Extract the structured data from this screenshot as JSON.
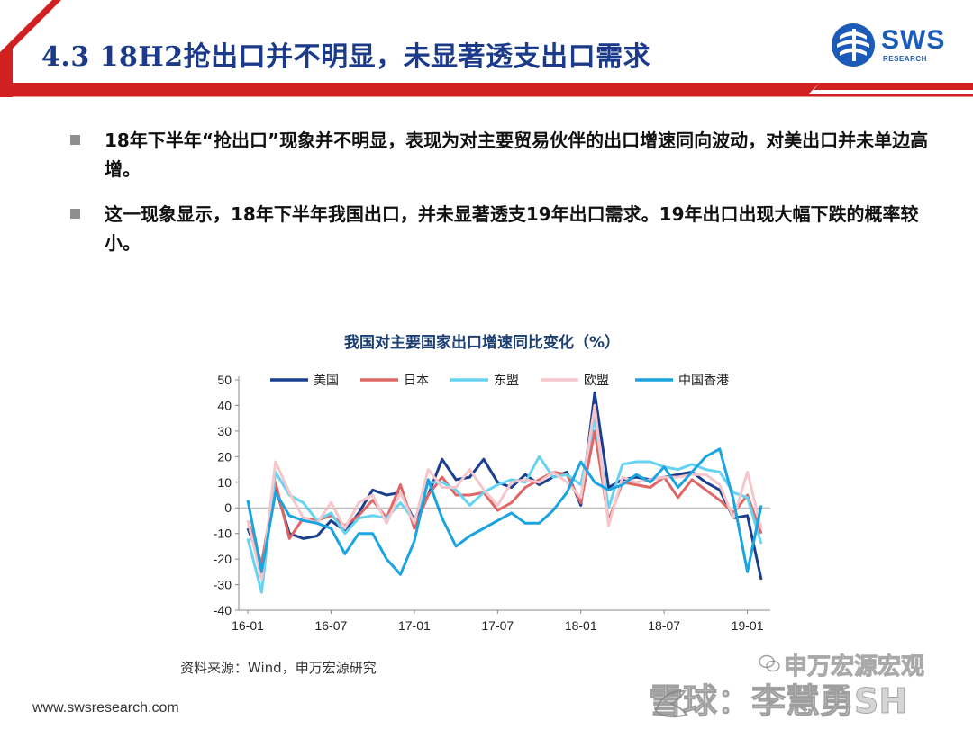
{
  "header": {
    "title": "4.3 18H2抢出口并不明显，未显著透支出口需求",
    "logo_text": "SWS",
    "logo_subtext": "RESEARCH"
  },
  "bullets": [
    {
      "text": "18年下半年“抢出口”现象并不明显，表现为对主要贸易伙伴的出口增速同向波动，对美出口并未单边高增。"
    },
    {
      "text": "这一现象显示，18年下半年我国出口，并未显著透支19年出口需求。19年出口出现大幅下跌的概率较小。"
    }
  ],
  "chart_data": {
    "type": "line",
    "title": "我国对主要国家出口增速同比变化（%）",
    "ylim": [
      -40,
      50
    ],
    "yticks": [
      50,
      40,
      30,
      20,
      10,
      0,
      -10,
      -20,
      -30,
      -40
    ],
    "x_tick_labels": [
      "16-01",
      "16-07",
      "17-01",
      "17-07",
      "18-01",
      "18-07",
      "19-01"
    ],
    "x_tick_months": [
      0,
      6,
      12,
      18,
      24,
      30,
      36
    ],
    "x_months": [
      0,
      1,
      2,
      3,
      4,
      5,
      6,
      7,
      8,
      9,
      10,
      11,
      12,
      13,
      14,
      15,
      16,
      17,
      18,
      19,
      20,
      21,
      22,
      23,
      24,
      25,
      26,
      27,
      28,
      29,
      30,
      31,
      32,
      33,
      34,
      35,
      36,
      37
    ],
    "legend_position": "top",
    "grid": false,
    "series": [
      {
        "name": "美国",
        "color": "#1b3f8f",
        "values": [
          -8,
          -22,
          8,
          -10,
          -12,
          -11,
          -5,
          -9,
          -2,
          7,
          5,
          6,
          -5,
          5,
          19,
          11,
          12,
          19,
          10,
          8,
          13,
          9,
          12,
          14,
          1,
          45,
          8,
          11,
          12,
          11,
          12,
          13,
          14,
          10,
          7,
          -4,
          -3,
          -28
        ]
      },
      {
        "name": "日本",
        "color": "#e06666",
        "values": [
          -5,
          -22,
          10,
          -12,
          -4,
          -5,
          -3,
          -7,
          -3,
          3,
          -4,
          9,
          -8,
          5,
          12,
          5,
          5,
          6,
          -1,
          2,
          8,
          11,
          14,
          13,
          2,
          30,
          -5,
          10,
          9,
          8,
          12,
          4,
          11,
          7,
          3,
          -2,
          5,
          -10
        ]
      },
      {
        "name": "东盟",
        "color": "#66d3f0",
        "values": [
          -12,
          -33,
          14,
          5,
          2,
          -5,
          -2,
          -10,
          -4,
          -3,
          -4,
          2,
          -5,
          10,
          10,
          7,
          1,
          6,
          9,
          11,
          10,
          20,
          12,
          13,
          9,
          35,
          0,
          17,
          18,
          18,
          16,
          15,
          17,
          15,
          14,
          6,
          4,
          -14
        ]
      },
      {
        "name": "欧盟",
        "color": "#f5c6cc",
        "values": [
          -5,
          -28,
          18,
          6,
          -4,
          -6,
          2,
          -8,
          2,
          5,
          -6,
          6,
          -6,
          15,
          8,
          8,
          15,
          7,
          1,
          10,
          11,
          10,
          14,
          10,
          4,
          40,
          -7,
          12,
          10,
          11,
          12,
          12,
          13,
          13,
          9,
          -4,
          14,
          -8
        ]
      },
      {
        "name": "中国香港",
        "color": "#1ca4e0",
        "values": [
          3,
          -25,
          6,
          -3,
          -5,
          -6,
          -8,
          -18,
          -10,
          -10,
          -20,
          -26,
          -13,
          11,
          -4,
          -15,
          -11,
          -8,
          -5,
          -2,
          -6,
          -6,
          -1,
          6,
          18,
          10,
          7,
          9,
          13,
          10,
          16,
          8,
          14,
          20,
          23,
          3,
          -25,
          1
        ]
      }
    ]
  },
  "source_note": "资料来源：Wind，申万宏源研究",
  "footer": {
    "url": "www.swsresearch.com"
  },
  "watermark": {
    "top_text": "申万宏源宏观",
    "bottom_text": "雪球：李慧勇SH"
  },
  "colors": {
    "title_blue": "#1b3a8a",
    "header_red": "#d0201f",
    "logo_blue": "#1d5bb8",
    "bullet_gray": "#8e8e8e"
  }
}
